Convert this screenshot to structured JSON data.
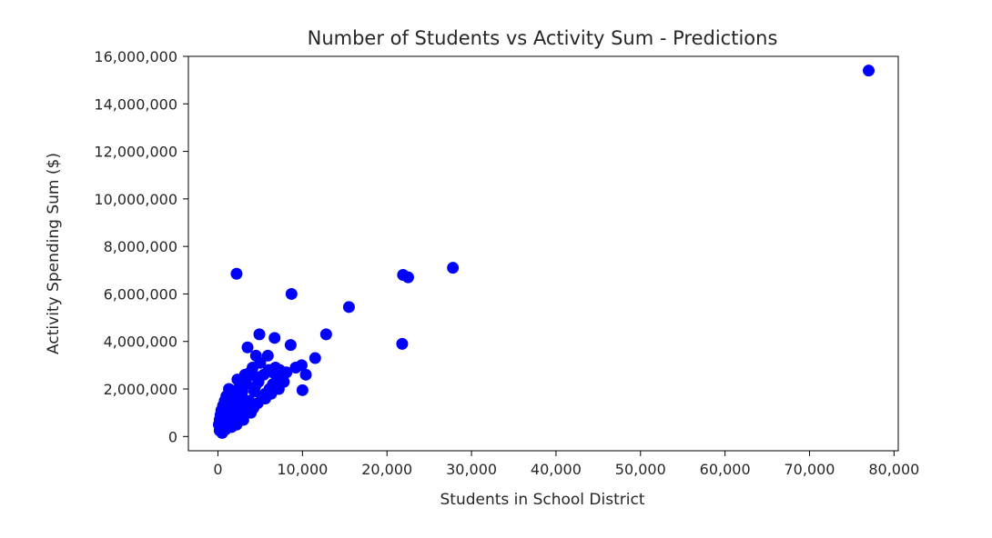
{
  "chart_data": {
    "type": "scatter",
    "title": "Number of Students vs Activity Sum - Predictions",
    "xlabel": "Students in School District",
    "ylabel": "Activity Spending Sum ($)",
    "xlim": [
      -3500,
      80500
    ],
    "ylim": [
      -600000,
      16000000
    ],
    "xticks": [
      0,
      10000,
      20000,
      30000,
      40000,
      50000,
      60000,
      70000,
      80000
    ],
    "xtick_labels": [
      "0",
      "10,000",
      "20,000",
      "30,000",
      "40,000",
      "50,000",
      "60,000",
      "70,000",
      "80,000"
    ],
    "yticks": [
      0,
      2000000,
      4000000,
      6000000,
      8000000,
      10000000,
      12000000,
      14000000,
      16000000
    ],
    "ytick_labels": [
      "0",
      "2,000,000",
      "4,000,000",
      "6,000,000",
      "8,000,000",
      "10,000,000",
      "12,000,000",
      "14,000,000",
      "16,000,000"
    ],
    "grid": false,
    "marker_color": "#0000ff",
    "series": [
      {
        "marker": "o",
        "x": [
          77000,
          27800,
          21900,
          22500,
          15500,
          8700,
          2200,
          21800,
          12800,
          11500,
          10400,
          9900,
          10000,
          8600,
          6700,
          4900,
          3500,
          4500,
          5900,
          7800,
          7300,
          6500,
          3200,
          4600,
          2300,
          3000,
          1300,
          1000,
          800,
          600,
          400,
          300,
          200,
          100,
          200,
          500,
          700,
          900,
          1100,
          1200,
          1500,
          1700,
          1900,
          2100,
          2400,
          2600,
          2800,
          3000,
          3300,
          3600,
          3900,
          4200,
          4700,
          5200,
          5600,
          6100,
          6500,
          7000,
          2000,
          1800,
          1500,
          1200,
          2500,
          3100,
          3700,
          4300,
          4800,
          5400,
          6000,
          6800,
          7600,
          3000,
          2200,
          1600,
          900,
          500,
          1400,
          2700,
          3500,
          4100,
          5000,
          600,
          1000,
          1300,
          1700,
          2100,
          2900,
          3300,
          3800,
          4400,
          5600,
          6300,
          7200,
          8100,
          9200
        ],
        "y": [
          15400000,
          7100000,
          6800000,
          6700000,
          5450000,
          6000000,
          6850000,
          3900000,
          4300000,
          3300000,
          2600000,
          3000000,
          1950000,
          3850000,
          4150000,
          4300000,
          3750000,
          3400000,
          3400000,
          2300000,
          2800000,
          2700000,
          2600000,
          2500000,
          2400000,
          2300000,
          2000000,
          1700000,
          1500000,
          1300000,
          1100000,
          900000,
          700000,
          500000,
          250000,
          150000,
          350000,
          600000,
          800000,
          1000000,
          1200000,
          1400000,
          1600000,
          1800000,
          2000000,
          1900000,
          1700000,
          1500000,
          1300000,
          1100000,
          1000000,
          1200000,
          1400000,
          1600000,
          1800000,
          2000000,
          2200000,
          2400000,
          1300000,
          1000000,
          800000,
          600000,
          900000,
          1100000,
          1500000,
          1900000,
          2300000,
          2600000,
          2800000,
          2900000,
          2500000,
          700000,
          500000,
          400000,
          300000,
          200000,
          1600000,
          2100000,
          2500000,
          2900000,
          3100000,
          1100000,
          1300000,
          1500000,
          1700000,
          1400000,
          1900000,
          2200000,
          2700000,
          2100000,
          1600000,
          1800000,
          2000000,
          2700000,
          2900000
        ]
      }
    ]
  }
}
